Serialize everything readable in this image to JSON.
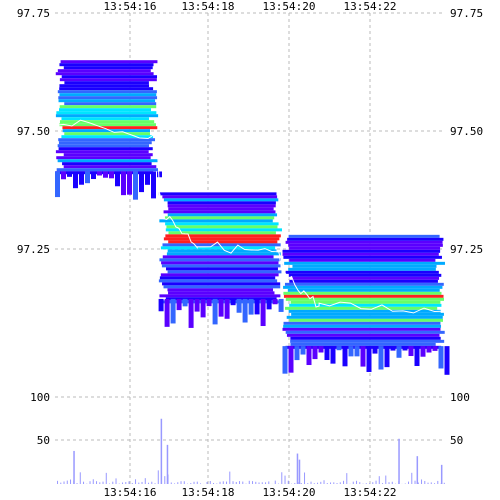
{
  "chart_data": [
    {
      "type": "heatmap",
      "title": "",
      "xlabel": "",
      "ylabel": "",
      "x_tick_labels": [
        "13:54:16",
        "13:54:18",
        "13:54:20",
        "13:54:22"
      ],
      "y_tick_labels": [
        "97.75",
        "97.50",
        "97.25"
      ],
      "ylim": [
        97.04,
        97.75
      ],
      "grid": true,
      "bands": [
        {
          "t0": 0.0,
          "t1": 2.55,
          "center": 97.52,
          "low": 97.41,
          "high": 97.65
        },
        {
          "t0": 2.55,
          "t1": 5.6,
          "center": 97.28,
          "low": 97.14,
          "high": 97.37
        },
        {
          "t0": 5.6,
          "t1": 9.6,
          "center": 97.14,
          "low": 97.04,
          "high": 97.28
        }
      ],
      "trade_path": [
        {
          "t": 0.0,
          "price": 97.52
        },
        {
          "t": 2.5,
          "price": 97.49
        },
        {
          "t": 2.6,
          "price": 97.33
        },
        {
          "t": 3.5,
          "price": 97.26
        },
        {
          "t": 5.5,
          "price": 97.24
        },
        {
          "t": 5.6,
          "price": 97.2
        },
        {
          "t": 6.5,
          "price": 97.13
        },
        {
          "t": 9.6,
          "price": 97.12
        }
      ]
    },
    {
      "type": "bar",
      "title": "",
      "xlabel": "",
      "ylabel": "",
      "x_tick_labels": [
        "13:54:16",
        "13:54:18",
        "13:54:20",
        "13:54:22"
      ],
      "y_tick_labels": [
        "100",
        "50"
      ],
      "ylim": [
        0,
        100
      ],
      "spikes": [
        {
          "t": 0.45,
          "value": 38
        },
        {
          "t": 2.6,
          "value": 75
        },
        {
          "t": 2.75,
          "value": 45
        },
        {
          "t": 5.95,
          "value": 35
        },
        {
          "t": 6.0,
          "value": 28
        },
        {
          "t": 8.45,
          "value": 52
        },
        {
          "t": 8.9,
          "value": 32
        },
        {
          "t": 9.5,
          "value": 22
        }
      ]
    }
  ],
  "colors": {
    "grid": "#bbbbbb",
    "volume": "#9999ff",
    "trade_line": "#ffffff",
    "palette": [
      "#1a00ff",
      "#5a00ff",
      "#3366ff",
      "#00aaff",
      "#00e5ff",
      "#66ff66",
      "#ff2020"
    ]
  }
}
